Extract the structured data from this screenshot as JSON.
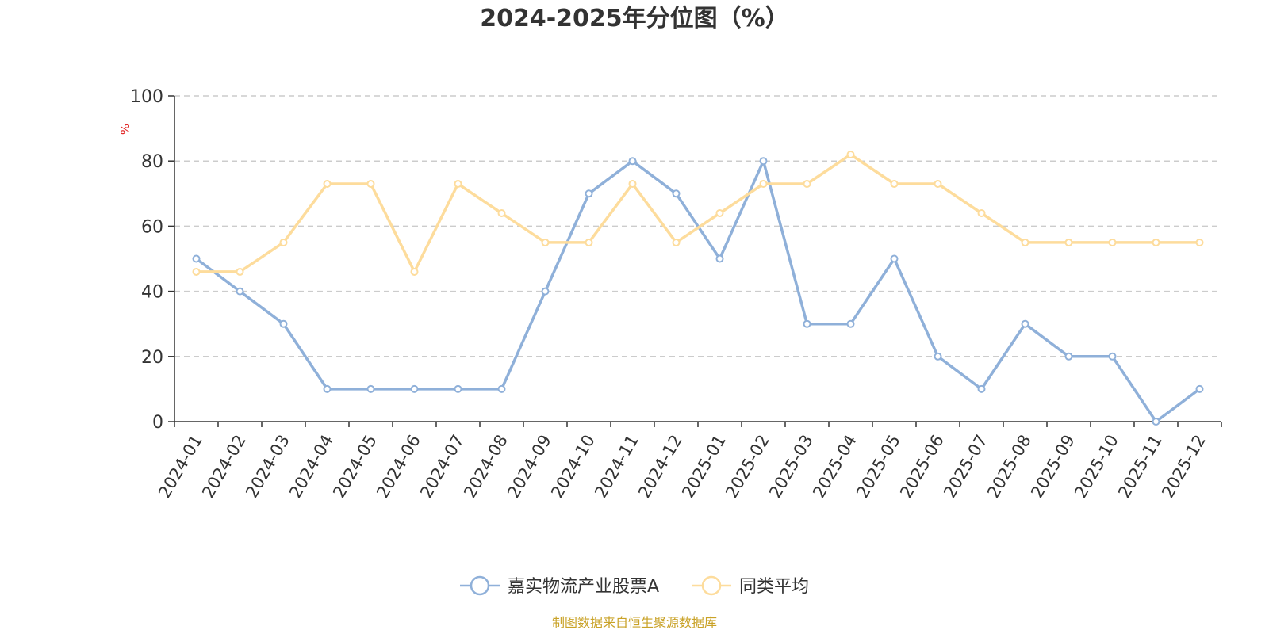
{
  "chart_data": {
    "type": "line",
    "title": "2024-2025年分位图（%）",
    "unit": "%",
    "categories": [
      "2024-01",
      "2024-02",
      "2024-03",
      "2024-04",
      "2024-05",
      "2024-06",
      "2024-07",
      "2024-08",
      "2024-09",
      "2024-10",
      "2024-11",
      "2024-12",
      "2025-01",
      "2025-02",
      "2025-03",
      "2025-04",
      "2025-05",
      "2025-06",
      "2025-07",
      "2025-08",
      "2025-09",
      "2025-10",
      "2025-11",
      "2025-12"
    ],
    "yticks": [
      0,
      20,
      40,
      60,
      80,
      100
    ],
    "ylim": [
      0,
      100
    ],
    "grid": true,
    "legend_position": "bottom",
    "series": [
      {
        "name": "嘉实物流产业股票A",
        "color": "#8fb0d9",
        "values": [
          50,
          40,
          30,
          10,
          10,
          10,
          10,
          10,
          40,
          70,
          80,
          70,
          50,
          80,
          30,
          30,
          50,
          20,
          10,
          30,
          20,
          20,
          0,
          10
        ]
      },
      {
        "name": "同类平均",
        "color": "#fddc9c",
        "values": [
          46,
          46,
          55,
          73,
          73,
          46,
          73,
          64,
          55,
          55,
          73,
          55,
          64,
          73,
          73,
          82,
          73,
          73,
          64,
          55,
          55,
          55,
          55,
          55
        ]
      }
    ],
    "source": "制图数据来自恒生聚源数据库"
  }
}
